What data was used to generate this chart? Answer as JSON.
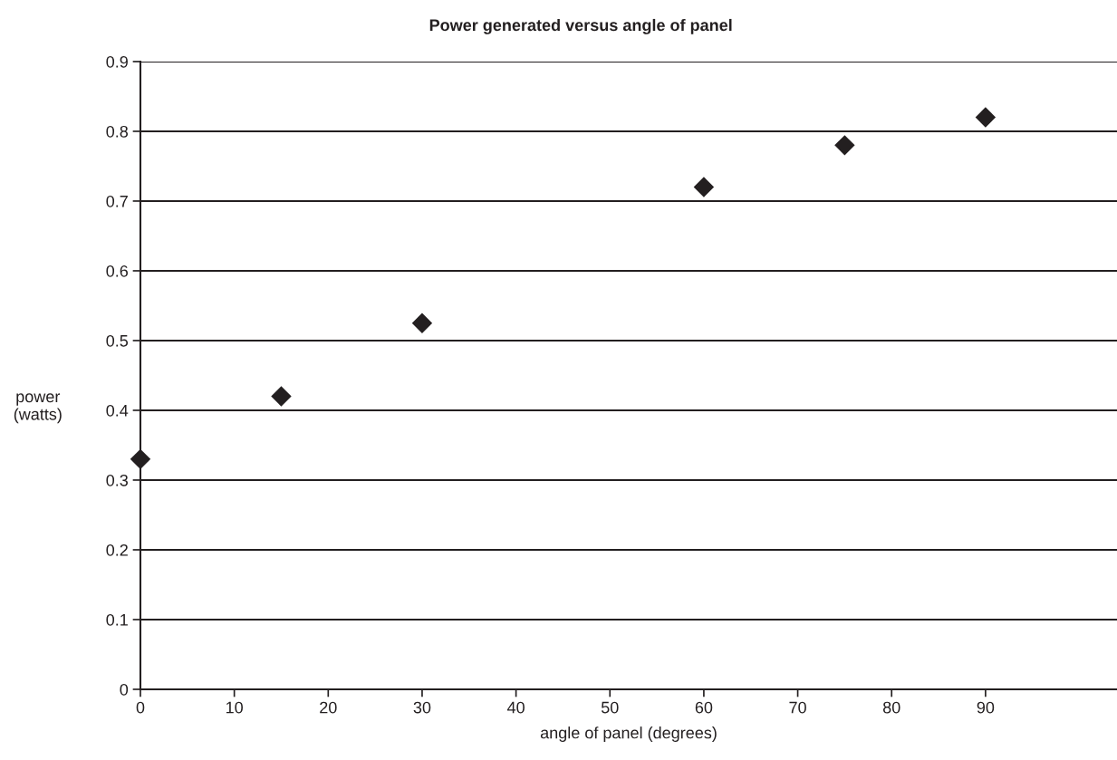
{
  "chart_data": {
    "type": "scatter",
    "title": "Power generated versus angle of panel",
    "xlabel": "angle of panel (degrees)",
    "ylabel": "power\n(watts)",
    "x": [
      0,
      15,
      30,
      60,
      75,
      90
    ],
    "series": [
      {
        "color": "#231f20",
        "values": [
          0.33,
          0.42,
          0.525,
          0.72,
          0.78,
          0.82
        ]
      }
    ],
    "xlim": [
      0,
      104
    ],
    "xticks": [
      0,
      10,
      20,
      30,
      40,
      50,
      60,
      70,
      80,
      90
    ],
    "ylim": [
      0,
      0.9
    ],
    "yticks": [
      0,
      0.1,
      0.2,
      0.3,
      0.4,
      0.5,
      0.6,
      0.7,
      0.8,
      0.9
    ],
    "grid": "y",
    "marker": "diamond"
  }
}
